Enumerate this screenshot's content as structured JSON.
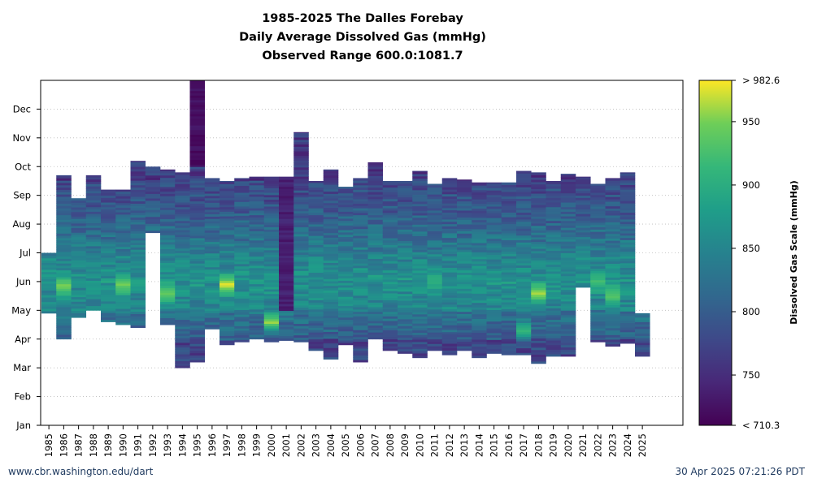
{
  "chart_data": {
    "type": "heatmap",
    "title": [
      "1985-2025 The Dalles Forebay",
      "Daily Average Dissolved Gas (mmHg)",
      "Observed Range 600.0:1081.7"
    ],
    "x_categories": [
      "1985",
      "1986",
      "1987",
      "1988",
      "1989",
      "1990",
      "1991",
      "1992",
      "1993",
      "1994",
      "1995",
      "1996",
      "1997",
      "1998",
      "1999",
      "2000",
      "2001",
      "2002",
      "2003",
      "2004",
      "2005",
      "2006",
      "2007",
      "2008",
      "2009",
      "2010",
      "2011",
      "2012",
      "2013",
      "2014",
      "2015",
      "2016",
      "2017",
      "2018",
      "2019",
      "2020",
      "2021",
      "2022",
      "2023",
      "2024",
      "2025"
    ],
    "y_ticks": [
      "Jan",
      "Feb",
      "Mar",
      "Apr",
      "May",
      "Jun",
      "Jul",
      "Aug",
      "Sep",
      "Oct",
      "Nov",
      "Dec"
    ],
    "y_range_months": [
      1,
      13
    ],
    "grid": "horizontal-dotted",
    "colorbar": {
      "label": "Dissolved Gas Scale (mmHg)",
      "min": 710.3,
      "max": 982.6,
      "ticks": [
        {
          "value": 982.6,
          "label": "> 982.6"
        },
        {
          "value": 950,
          "label": "950"
        },
        {
          "value": 900,
          "label": "900"
        },
        {
          "value": 850,
          "label": "850"
        },
        {
          "value": 800,
          "label": "800"
        },
        {
          "value": 750,
          "label": "750"
        },
        {
          "value": 710.3,
          "label": "< 710.3"
        }
      ],
      "colormap": "viridis"
    },
    "coverage": [
      {
        "year": "1985",
        "start": 4.9,
        "end": 7.0
      },
      {
        "year": "1986",
        "start": 4.0,
        "end": 9.7
      },
      {
        "year": "1987",
        "start": 4.75,
        "end": 8.9
      },
      {
        "year": "1988",
        "start": 5.0,
        "end": 9.7
      },
      {
        "year": "1989",
        "start": 4.6,
        "end": 9.2
      },
      {
        "year": "1990",
        "start": 4.5,
        "end": 9.2
      },
      {
        "year": "1991",
        "start": 4.4,
        "end": 10.2
      },
      {
        "year": "1992",
        "start": 7.7,
        "end": 10.0
      },
      {
        "year": "1993",
        "start": 4.5,
        "end": 9.9
      },
      {
        "year": "1994",
        "start": 3.0,
        "end": 9.8
      },
      {
        "year": "1995",
        "start": 3.2,
        "end": 13.0
      },
      {
        "year": "1996",
        "start": 4.35,
        "end": 9.6
      },
      {
        "year": "1997",
        "start": 3.8,
        "end": 9.5
      },
      {
        "year": "1998",
        "start": 3.9,
        "end": 9.6
      },
      {
        "year": "1999",
        "start": 4.0,
        "end": 9.65
      },
      {
        "year": "2000",
        "start": 3.9,
        "end": 9.65
      },
      {
        "year": "2001",
        "start": 3.95,
        "end": 9.65
      },
      {
        "year": "2002",
        "start": 3.9,
        "end": 11.2
      },
      {
        "year": "2003",
        "start": 3.6,
        "end": 9.5
      },
      {
        "year": "2004",
        "start": 3.3,
        "end": 9.9
      },
      {
        "year": "2005",
        "start": 3.8,
        "end": 9.3
      },
      {
        "year": "2006",
        "start": 3.2,
        "end": 9.6
      },
      {
        "year": "2007",
        "start": 4.0,
        "end": 10.15
      },
      {
        "year": "2008",
        "start": 3.6,
        "end": 9.5
      },
      {
        "year": "2009",
        "start": 3.5,
        "end": 9.5
      },
      {
        "year": "2010",
        "start": 3.35,
        "end": 9.85
      },
      {
        "year": "2011",
        "start": 3.6,
        "end": 9.4
      },
      {
        "year": "2012",
        "start": 3.45,
        "end": 9.6
      },
      {
        "year": "2013",
        "start": 3.6,
        "end": 9.55
      },
      {
        "year": "2014",
        "start": 3.35,
        "end": 9.45
      },
      {
        "year": "2015",
        "start": 3.5,
        "end": 9.45
      },
      {
        "year": "2016",
        "start": 3.45,
        "end": 9.45
      },
      {
        "year": "2017",
        "start": 3.45,
        "end": 9.85
      },
      {
        "year": "2018",
        "start": 3.15,
        "end": 9.8
      },
      {
        "year": "2019",
        "start": 3.4,
        "end": 9.5
      },
      {
        "year": "2020",
        "start": 3.4,
        "end": 9.75
      },
      {
        "year": "2021",
        "start": 5.8,
        "end": 9.65
      },
      {
        "year": "2022",
        "start": 3.9,
        "end": 9.4
      },
      {
        "year": "2023",
        "start": 3.75,
        "end": 9.6
      },
      {
        "year": "2024",
        "start": 3.85,
        "end": 9.8
      },
      {
        "year": "2025",
        "start": 3.4,
        "end": 4.9
      }
    ],
    "peaks": [
      {
        "year": "1986",
        "month": 5.85,
        "value": 955
      },
      {
        "year": "1990",
        "month": 5.9,
        "value": 950
      },
      {
        "year": "1993",
        "month": 5.6,
        "value": 945
      },
      {
        "year": "1997",
        "month": 5.9,
        "value": 982
      },
      {
        "year": "2000",
        "month": 4.6,
        "value": 965
      },
      {
        "year": "2011",
        "month": 6.0,
        "value": 905
      },
      {
        "year": "2017",
        "month": 4.3,
        "value": 915
      },
      {
        "year": "2018",
        "month": 5.6,
        "value": 965
      },
      {
        "year": "2022",
        "month": 6.0,
        "value": 925
      },
      {
        "year": "2023",
        "month": 5.5,
        "value": 935
      }
    ]
  },
  "footer": {
    "source": "www.cbr.washington.edu/dart",
    "timestamp": "30 Apr 2025 07:21:26 PDT"
  }
}
